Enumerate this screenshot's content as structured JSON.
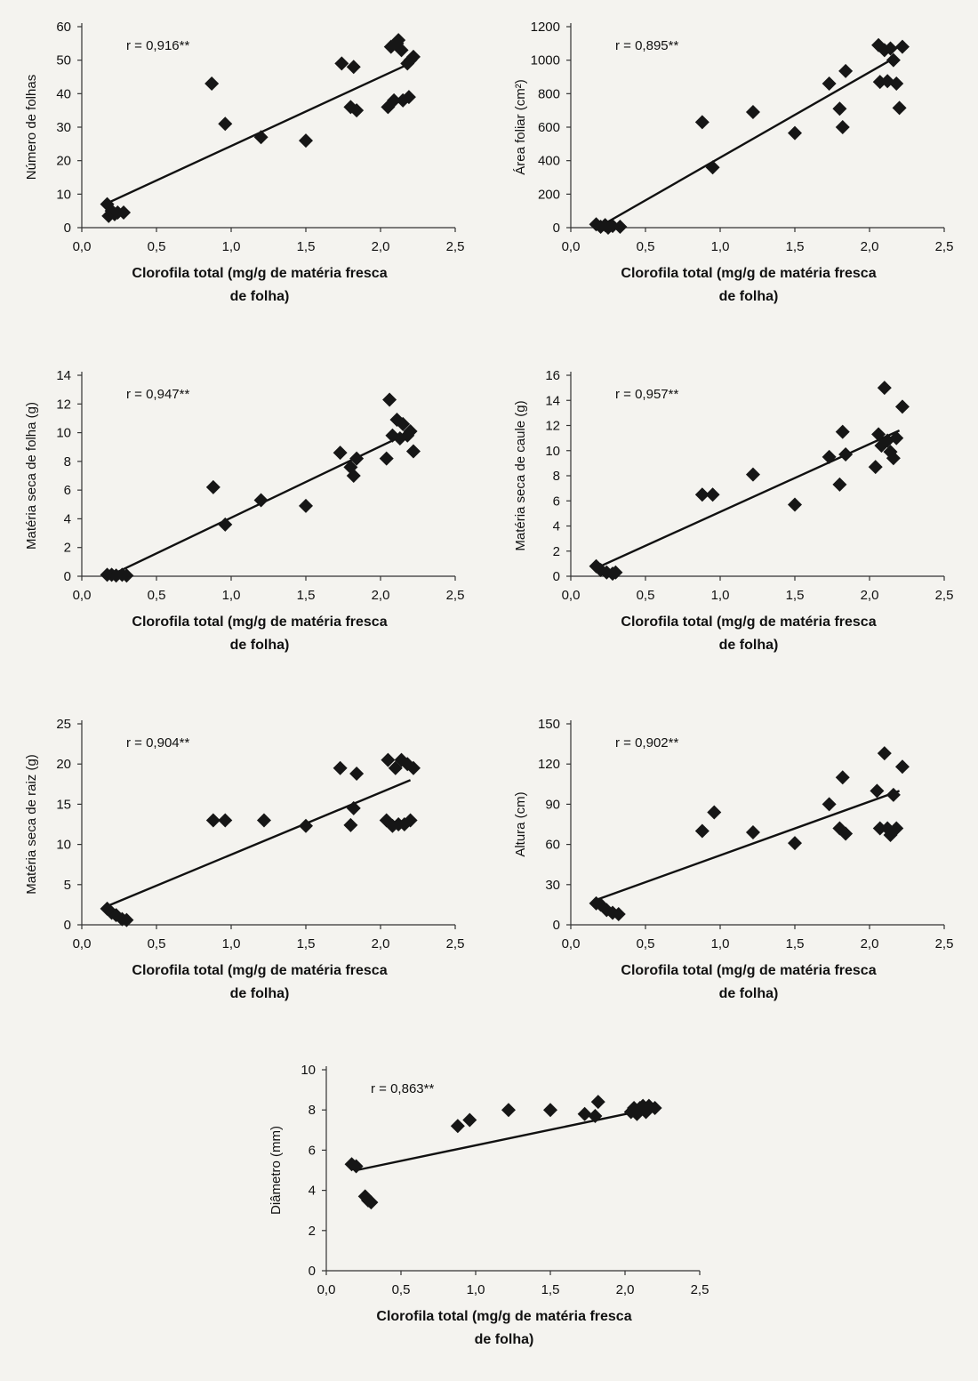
{
  "chart_data": [
    {
      "id": "leaves",
      "type": "scatter",
      "r_label": "r = 0,916**",
      "ylabel": "Número de folhas",
      "xlabel_lines": [
        "Clorofila total (mg/g de matéria fresca",
        "de folha)"
      ],
      "xlim": [
        0,
        2.5
      ],
      "ylim": [
        0,
        60
      ],
      "x_ticks": [
        "0,0",
        "0,5",
        "1,0",
        "1,5",
        "2,0",
        "2,5"
      ],
      "y_ticks": [
        "0",
        "10",
        "20",
        "30",
        "40",
        "50",
        "60"
      ],
      "points": [
        [
          0.17,
          7
        ],
        [
          0.18,
          3.5
        ],
        [
          0.2,
          5
        ],
        [
          0.22,
          4
        ],
        [
          0.24,
          4.5
        ],
        [
          0.28,
          4.5
        ],
        [
          0.87,
          43
        ],
        [
          0.96,
          31
        ],
        [
          1.2,
          27
        ],
        [
          1.5,
          26
        ],
        [
          1.74,
          49
        ],
        [
          1.8,
          36
        ],
        [
          1.82,
          48
        ],
        [
          1.84,
          35
        ],
        [
          2.05,
          36
        ],
        [
          2.07,
          54
        ],
        [
          2.09,
          38
        ],
        [
          2.11,
          55
        ],
        [
          2.12,
          56
        ],
        [
          2.14,
          53
        ],
        [
          2.15,
          38
        ],
        [
          2.18,
          49
        ],
        [
          2.19,
          39
        ],
        [
          2.2,
          50
        ],
        [
          2.22,
          51
        ]
      ],
      "trend": [
        [
          0.18,
          7.5
        ],
        [
          2.22,
          49.5
        ]
      ],
      "grid": false
    },
    {
      "id": "leaf-area",
      "type": "scatter",
      "r_label": "r = 0,895**",
      "ylabel": "Área foliar (cm²)",
      "xlabel_lines": [
        "Clorofila total (mg/g de matéria fresca",
        "de folha)"
      ],
      "xlim": [
        0,
        2.5
      ],
      "ylim": [
        0,
        1200
      ],
      "x_ticks": [
        "0,0",
        "0,5",
        "1,0",
        "1,5",
        "2,0",
        "2,5"
      ],
      "y_ticks": [
        "0",
        "200",
        "400",
        "600",
        "800",
        "1000",
        "1200"
      ],
      "points": [
        [
          0.17,
          20
        ],
        [
          0.2,
          5
        ],
        [
          0.23,
          15
        ],
        [
          0.25,
          0
        ],
        [
          0.28,
          10
        ],
        [
          0.33,
          5
        ],
        [
          0.88,
          630
        ],
        [
          0.95,
          360
        ],
        [
          1.22,
          690
        ],
        [
          1.5,
          565
        ],
        [
          1.73,
          860
        ],
        [
          1.8,
          710
        ],
        [
          1.82,
          600
        ],
        [
          1.84,
          935
        ],
        [
          2.06,
          1090
        ],
        [
          2.07,
          870
        ],
        [
          2.1,
          1060
        ],
        [
          2.12,
          875
        ],
        [
          2.14,
          1070
        ],
        [
          2.16,
          1000
        ],
        [
          2.18,
          860
        ],
        [
          2.2,
          715
        ],
        [
          2.22,
          1080
        ]
      ],
      "trend": [
        [
          0.18,
          0
        ],
        [
          2.16,
          1010
        ]
      ],
      "grid": false
    },
    {
      "id": "leaf-dry-mass",
      "type": "scatter",
      "r_label": "r = 0,947**",
      "ylabel": "Matéria seca de folha (g)",
      "xlabel_lines": [
        "Clorofila total (mg/g de matéria fresca",
        "de folha)"
      ],
      "xlim": [
        0,
        2.5
      ],
      "ylim": [
        0,
        14
      ],
      "x_ticks": [
        "0,0",
        "0,5",
        "1,0",
        "1,5",
        "2,0",
        "2,5"
      ],
      "y_ticks": [
        "0",
        "2",
        "4",
        "6",
        "8",
        "10",
        "12",
        "14"
      ],
      "points": [
        [
          0.17,
          0.1
        ],
        [
          0.2,
          0.1
        ],
        [
          0.23,
          0.05
        ],
        [
          0.27,
          0.1
        ],
        [
          0.3,
          0.05
        ],
        [
          0.88,
          6.2
        ],
        [
          0.96,
          3.6
        ],
        [
          1.2,
          5.3
        ],
        [
          1.5,
          4.9
        ],
        [
          1.73,
          8.6
        ],
        [
          1.8,
          7.6
        ],
        [
          1.82,
          7.0
        ],
        [
          1.84,
          8.2
        ],
        [
          2.04,
          8.2
        ],
        [
          2.06,
          12.3
        ],
        [
          2.08,
          9.8
        ],
        [
          2.11,
          10.9
        ],
        [
          2.13,
          9.6
        ],
        [
          2.15,
          10.6
        ],
        [
          2.18,
          9.8
        ],
        [
          2.2,
          10.1
        ],
        [
          2.22,
          8.7
        ]
      ],
      "trend": [
        [
          0.18,
          0.0
        ],
        [
          2.15,
          9.8
        ]
      ],
      "grid": false
    },
    {
      "id": "stem-dry-mass",
      "type": "scatter",
      "r_label": "r = 0,957**",
      "ylabel": "Matéria seca de caule (g)",
      "xlabel_lines": [
        "Clorofila total (mg/g de matéria fresca",
        "de folha)"
      ],
      "xlim": [
        0,
        2.5
      ],
      "ylim": [
        0,
        16
      ],
      "x_ticks": [
        "0,0",
        "0,5",
        "1,0",
        "1,5",
        "2,0",
        "2,5"
      ],
      "y_ticks": [
        "0",
        "2",
        "4",
        "6",
        "8",
        "10",
        "12",
        "14",
        "16"
      ],
      "points": [
        [
          0.17,
          0.8
        ],
        [
          0.2,
          0.5
        ],
        [
          0.24,
          0.3
        ],
        [
          0.28,
          0.2
        ],
        [
          0.3,
          0.3
        ],
        [
          0.88,
          6.5
        ],
        [
          0.95,
          6.5
        ],
        [
          1.22,
          8.1
        ],
        [
          1.5,
          5.7
        ],
        [
          1.73,
          9.5
        ],
        [
          1.8,
          7.3
        ],
        [
          1.82,
          11.5
        ],
        [
          1.84,
          9.7
        ],
        [
          2.04,
          8.7
        ],
        [
          2.06,
          11.3
        ],
        [
          2.08,
          10.4
        ],
        [
          2.1,
          15.0
        ],
        [
          2.12,
          10.8
        ],
        [
          2.14,
          9.9
        ],
        [
          2.16,
          9.4
        ],
        [
          2.18,
          11.0
        ],
        [
          2.22,
          13.5
        ]
      ],
      "trend": [
        [
          0.18,
          0.7
        ],
        [
          2.2,
          11.6
        ]
      ],
      "grid": false
    },
    {
      "id": "root-dry-mass",
      "type": "scatter",
      "r_label": "r = 0,904**",
      "ylabel": "Matéria seca de raiz (g)",
      "xlabel_lines": [
        "Clorofila total (mg/g de matéria fresca",
        "de folha)"
      ],
      "xlim": [
        0,
        2.5
      ],
      "ylim": [
        0,
        25
      ],
      "x_ticks": [
        "0,0",
        "0,5",
        "1,0",
        "1,5",
        "2,0",
        "2,5"
      ],
      "y_ticks": [
        "0",
        "5",
        "10",
        "15",
        "20",
        "25"
      ],
      "points": [
        [
          0.17,
          2.0
        ],
        [
          0.2,
          1.5
        ],
        [
          0.23,
          1.2
        ],
        [
          0.27,
          0.7
        ],
        [
          0.3,
          0.6
        ],
        [
          0.88,
          13.0
        ],
        [
          0.96,
          13.0
        ],
        [
          1.22,
          13.0
        ],
        [
          1.5,
          12.3
        ],
        [
          1.73,
          19.5
        ],
        [
          1.8,
          12.4
        ],
        [
          1.82,
          14.5
        ],
        [
          1.84,
          18.8
        ],
        [
          2.04,
          13.0
        ],
        [
          2.05,
          20.5
        ],
        [
          2.08,
          12.3
        ],
        [
          2.1,
          19.5
        ],
        [
          2.12,
          12.5
        ],
        [
          2.14,
          20.5
        ],
        [
          2.16,
          12.5
        ],
        [
          2.18,
          20.0
        ],
        [
          2.2,
          13.0
        ],
        [
          2.22,
          19.5
        ]
      ],
      "trend": [
        [
          0.18,
          2.4
        ],
        [
          2.2,
          18.0
        ]
      ],
      "grid": false
    },
    {
      "id": "height",
      "type": "scatter",
      "r_label": "r = 0,902**",
      "ylabel": "Altura (cm)",
      "xlabel_lines": [
        "Clorofila total (mg/g de matéria fresca",
        "de folha)"
      ],
      "xlim": [
        0,
        2.5
      ],
      "ylim": [
        0,
        150
      ],
      "x_ticks": [
        "0,0",
        "0,5",
        "1,0",
        "1,5",
        "2,0",
        "2,5"
      ],
      "y_ticks": [
        "0",
        "30",
        "60",
        "90",
        "120",
        "150"
      ],
      "points": [
        [
          0.17,
          16
        ],
        [
          0.2,
          15
        ],
        [
          0.24,
          11
        ],
        [
          0.28,
          9
        ],
        [
          0.32,
          8
        ],
        [
          0.88,
          70
        ],
        [
          0.96,
          84
        ],
        [
          1.22,
          69
        ],
        [
          1.5,
          61
        ],
        [
          1.73,
          90
        ],
        [
          1.8,
          72
        ],
        [
          1.82,
          110
        ],
        [
          1.84,
          68
        ],
        [
          2.05,
          100
        ],
        [
          2.07,
          72
        ],
        [
          2.1,
          128
        ],
        [
          2.12,
          72
        ],
        [
          2.14,
          67
        ],
        [
          2.16,
          97
        ],
        [
          2.18,
          72
        ],
        [
          2.22,
          118
        ]
      ],
      "trend": [
        [
          0.18,
          19
        ],
        [
          2.2,
          100
        ]
      ],
      "grid": false
    },
    {
      "id": "diameter",
      "type": "scatter",
      "r_label": "r = 0,863**",
      "ylabel": "Diâmetro (mm)",
      "xlabel_lines": [
        "Clorofila total (mg/g de matéria fresca",
        "de folha)"
      ],
      "xlim": [
        0,
        2.5
      ],
      "ylim": [
        0,
        10
      ],
      "x_ticks": [
        "0,0",
        "0,5",
        "1,0",
        "1,5",
        "2,0",
        "2,5"
      ],
      "y_ticks": [
        "0",
        "2",
        "4",
        "6",
        "8",
        "10"
      ],
      "points": [
        [
          0.17,
          5.3
        ],
        [
          0.2,
          5.2
        ],
        [
          0.26,
          3.7
        ],
        [
          0.28,
          3.5
        ],
        [
          0.3,
          3.4
        ],
        [
          0.88,
          7.2
        ],
        [
          0.96,
          7.5
        ],
        [
          1.22,
          8.0
        ],
        [
          1.5,
          8.0
        ],
        [
          1.73,
          7.8
        ],
        [
          1.8,
          7.7
        ],
        [
          1.82,
          8.4
        ],
        [
          2.04,
          7.9
        ],
        [
          2.06,
          8.1
        ],
        [
          2.08,
          7.8
        ],
        [
          2.1,
          8.1
        ],
        [
          2.12,
          8.2
        ],
        [
          2.14,
          7.9
        ],
        [
          2.16,
          8.2
        ],
        [
          2.2,
          8.1
        ]
      ],
      "trend": [
        [
          0.2,
          5.0
        ],
        [
          2.2,
          8.1
        ]
      ],
      "grid": false
    }
  ]
}
